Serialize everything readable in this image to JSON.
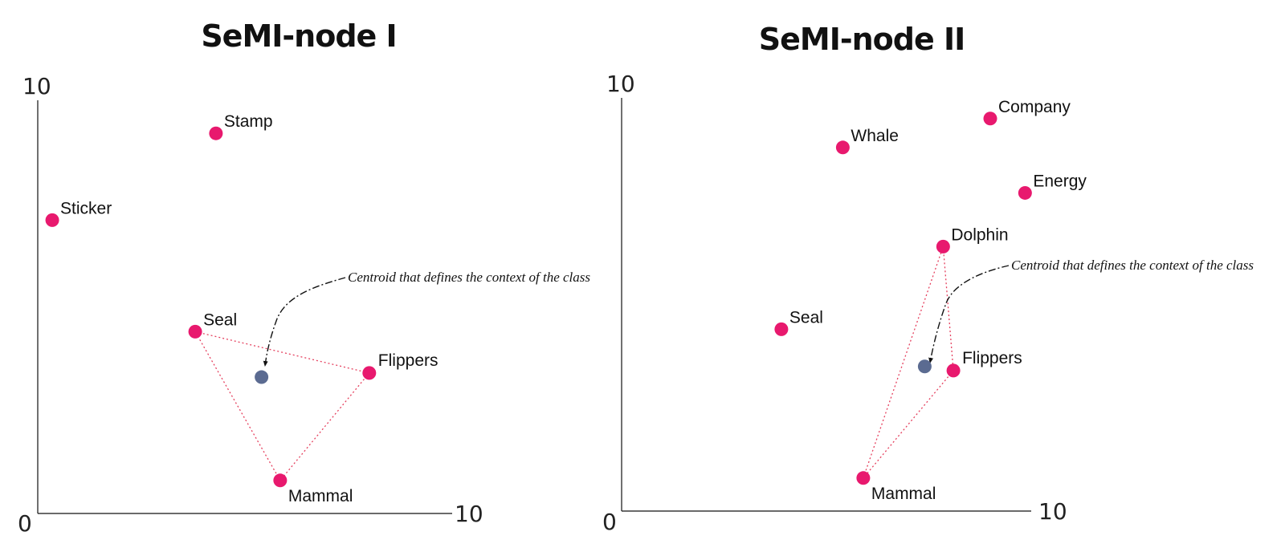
{
  "colors": {
    "point": "#e8196e",
    "centroid": "#5b6b91",
    "edge": "#e5405e",
    "axis": "#111111"
  },
  "chart_data": [
    {
      "type": "scatter",
      "title": "SeMI-node I",
      "xlim": [
        0,
        10
      ],
      "ylim": [
        0,
        10
      ],
      "x_tick_labels": [
        "10"
      ],
      "y_tick_labels": [
        "10"
      ],
      "origin_label": "0",
      "grid": false,
      "points": [
        {
          "label": "Stamp",
          "x": 4.3,
          "y": 9.2
        },
        {
          "label": "Sticker",
          "x": 0.35,
          "y": 7.1
        },
        {
          "label": "Seal",
          "x": 3.8,
          "y": 4.4
        },
        {
          "label": "Flippers",
          "x": 8.0,
          "y": 3.4
        },
        {
          "label": "Mammal",
          "x": 5.85,
          "y": 0.8
        }
      ],
      "centroid": {
        "x": 5.4,
        "y": 3.3
      },
      "cluster": [
        "Seal",
        "Flippers",
        "Mammal"
      ],
      "annotation": "Centroid that defines the context of the class"
    },
    {
      "type": "scatter",
      "title": "SeMI-node II",
      "xlim": [
        0,
        10
      ],
      "ylim": [
        0,
        10
      ],
      "x_tick_labels": [
        "10"
      ],
      "y_tick_labels": [
        "10"
      ],
      "origin_label": "0",
      "grid": false,
      "points": [
        {
          "label": "Company",
          "x": 9.0,
          "y": 9.5
        },
        {
          "label": "Whale",
          "x": 5.4,
          "y": 8.8
        },
        {
          "label": "Energy",
          "x": 9.85,
          "y": 7.7
        },
        {
          "label": "Dolphin",
          "x": 7.85,
          "y": 6.4
        },
        {
          "label": "Seal",
          "x": 3.9,
          "y": 4.4
        },
        {
          "label": "Flippers",
          "x": 8.1,
          "y": 3.4
        },
        {
          "label": "Mammal",
          "x": 5.9,
          "y": 0.8
        }
      ],
      "centroid": {
        "x": 7.4,
        "y": 3.5
      },
      "cluster": [
        "Dolphin",
        "Flippers",
        "Mammal"
      ],
      "annotation": "Centroid that defines the context of the class"
    }
  ]
}
